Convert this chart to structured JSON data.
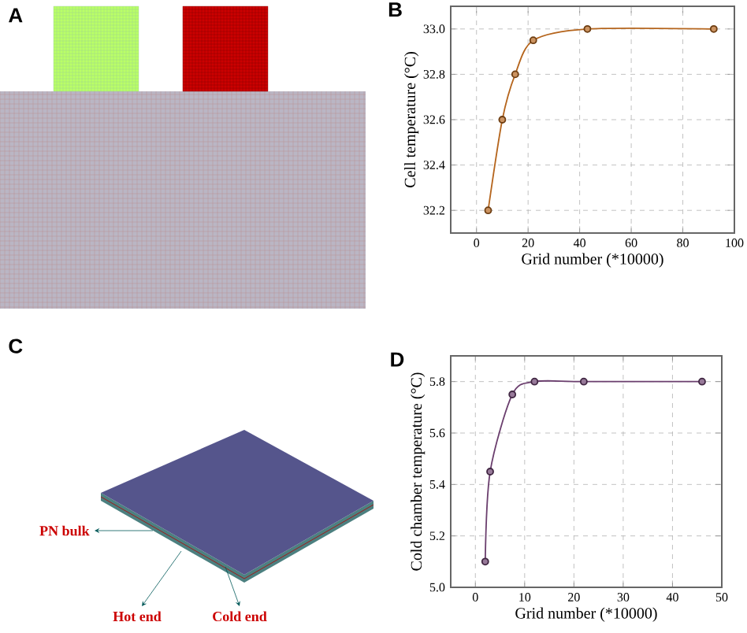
{
  "chart_data": [
    {
      "type": "other",
      "title": "A"
    },
    {
      "type": "line",
      "title": "B",
      "xlabel": "Grid number (*10000)",
      "ylabel": "Cell temperature (°C)",
      "x": [
        4.5,
        10,
        15,
        22,
        43,
        92
      ],
      "series": [
        {
          "color": "#b5651d",
          "values": [
            32.2,
            32.6,
            32.8,
            32.95,
            33.0,
            33.0
          ]
        }
      ],
      "xlim": [
        -10,
        100
      ],
      "ylim": [
        32.1,
        33.1
      ],
      "xticks": [
        0,
        20,
        40,
        60,
        80,
        100
      ],
      "yticks": [
        32.2,
        32.4,
        32.6,
        32.8,
        {
          "value": 33,
          "label": "33.0"
        }
      ],
      "grid": true,
      "marker": "circle",
      "line_style": "solid"
    },
    {
      "type": "other",
      "title": "C",
      "annotations": [
        "PN bulk",
        "Hot end",
        "Cold end"
      ]
    },
    {
      "type": "line",
      "title": "D",
      "xlabel": "Grid number (*10000)",
      "ylabel": "Cold chamber temperature (°C)",
      "x": [
        2,
        3,
        7.5,
        12,
        22,
        46
      ],
      "series": [
        {
          "color": "#6b3f6e",
          "values": [
            5.1,
            5.45,
            5.75,
            5.8,
            5.8,
            5.8
          ]
        }
      ],
      "xlim": [
        -5,
        50
      ],
      "ylim": [
        5.0,
        5.9
      ],
      "xticks": [
        0,
        10,
        20,
        30,
        40,
        50
      ],
      "yticks": [
        {
          "value": 5,
          "label": "5.0"
        },
        5.2,
        5.4,
        5.6,
        5.8
      ],
      "grid": true,
      "marker": "circle",
      "line_style": "solid"
    }
  ]
}
